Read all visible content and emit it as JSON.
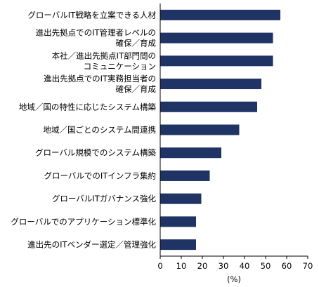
{
  "chart_data": {
    "type": "bar",
    "orientation": "horizontal",
    "categories": [
      [
        "グローバルIT戦略を立案できる人材"
      ],
      [
        "進出先拠点でのIT管理者レベルの",
        "確保／育成"
      ],
      [
        "本社／進出先拠点IT部門間の",
        "コミュニケーション"
      ],
      [
        "進出先拠点でのIT実務担当者の",
        "確保／育成"
      ],
      [
        "地域／国の特性に応じたシステム構築"
      ],
      [
        "地域／国ごとのシステム間連携"
      ],
      [
        "グローバル規模でのシステム構築"
      ],
      [
        "グローバルでのITインフラ集約"
      ],
      [
        "グローバルITガバナンス強化"
      ],
      [
        "グローバルでのアプリケーション標準化"
      ],
      [
        "進出先のITベンダー選定／管理強化"
      ]
    ],
    "values": [
      57.0,
      53.5,
      53.5,
      48.0,
      46.0,
      37.5,
      29.0,
      23.5,
      19.5,
      17.0,
      17.0
    ],
    "xlabel": "(%)",
    "xlim": [
      0,
      70
    ],
    "xticks": [
      0,
      10,
      20,
      30,
      40,
      50,
      60,
      70
    ],
    "grid": false,
    "bar_color": "#1f3464"
  }
}
